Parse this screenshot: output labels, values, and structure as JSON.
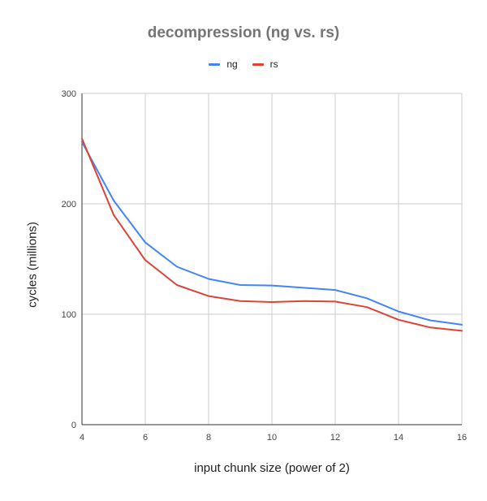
{
  "chart_data": {
    "type": "line",
    "title": "decompression (ng vs. rs)",
    "xlabel": "input chunk size (power of 2)",
    "ylabel": "cycles (millions)",
    "x": [
      4,
      5,
      6,
      7,
      8,
      9,
      10,
      11,
      12,
      13,
      14,
      15,
      16
    ],
    "xlim": [
      4,
      16
    ],
    "ylim": [
      0,
      300
    ],
    "xticks": [
      4,
      6,
      8,
      10,
      12,
      14,
      16
    ],
    "yticks": [
      0,
      100,
      200,
      300
    ],
    "grid": true,
    "legend": "top",
    "series": [
      {
        "name": "ng",
        "color": "#4285f4",
        "values": [
          256,
          203,
          165,
          143,
          132,
          126.5,
          126,
          124,
          122,
          114.5,
          102.5,
          94.5,
          90.5
        ]
      },
      {
        "name": "rs",
        "color": "#db4437",
        "values": [
          259,
          190,
          149,
          126.5,
          116.5,
          112,
          111,
          112,
          111.5,
          106.5,
          95,
          88,
          85
        ]
      }
    ]
  }
}
